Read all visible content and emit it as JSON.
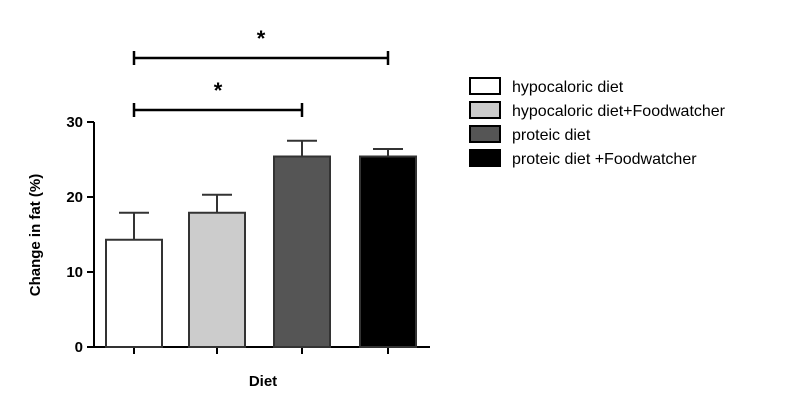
{
  "chart_data": {
    "type": "bar",
    "xlabel": "Diet",
    "ylabel": "Change in fat (%)",
    "ylim": [
      0,
      30
    ],
    "yticks": [
      0,
      10,
      20,
      30
    ],
    "categories": [
      "hypocaloric diet",
      "hypocaloric diet+Foodwatcher",
      "proteic diet",
      "proteic diet +Foodwatcher"
    ],
    "values": [
      14.3,
      17.9,
      25.4,
      25.4
    ],
    "errors": [
      3.6,
      2.4,
      2.1,
      1.0
    ],
    "colors": [
      "#ffffff",
      "#cccccc",
      "#555555",
      "#000000"
    ],
    "legend": {
      "placement": "right",
      "entries": [
        "hypocaloric diet",
        "hypocaloric diet+Foodwatcher",
        "proteic diet",
        "proteic diet +Foodwatcher"
      ]
    },
    "significance": [
      {
        "from": 0,
        "to": 3,
        "label": "*"
      },
      {
        "from": 0,
        "to": 2,
        "label": "*"
      }
    ]
  }
}
